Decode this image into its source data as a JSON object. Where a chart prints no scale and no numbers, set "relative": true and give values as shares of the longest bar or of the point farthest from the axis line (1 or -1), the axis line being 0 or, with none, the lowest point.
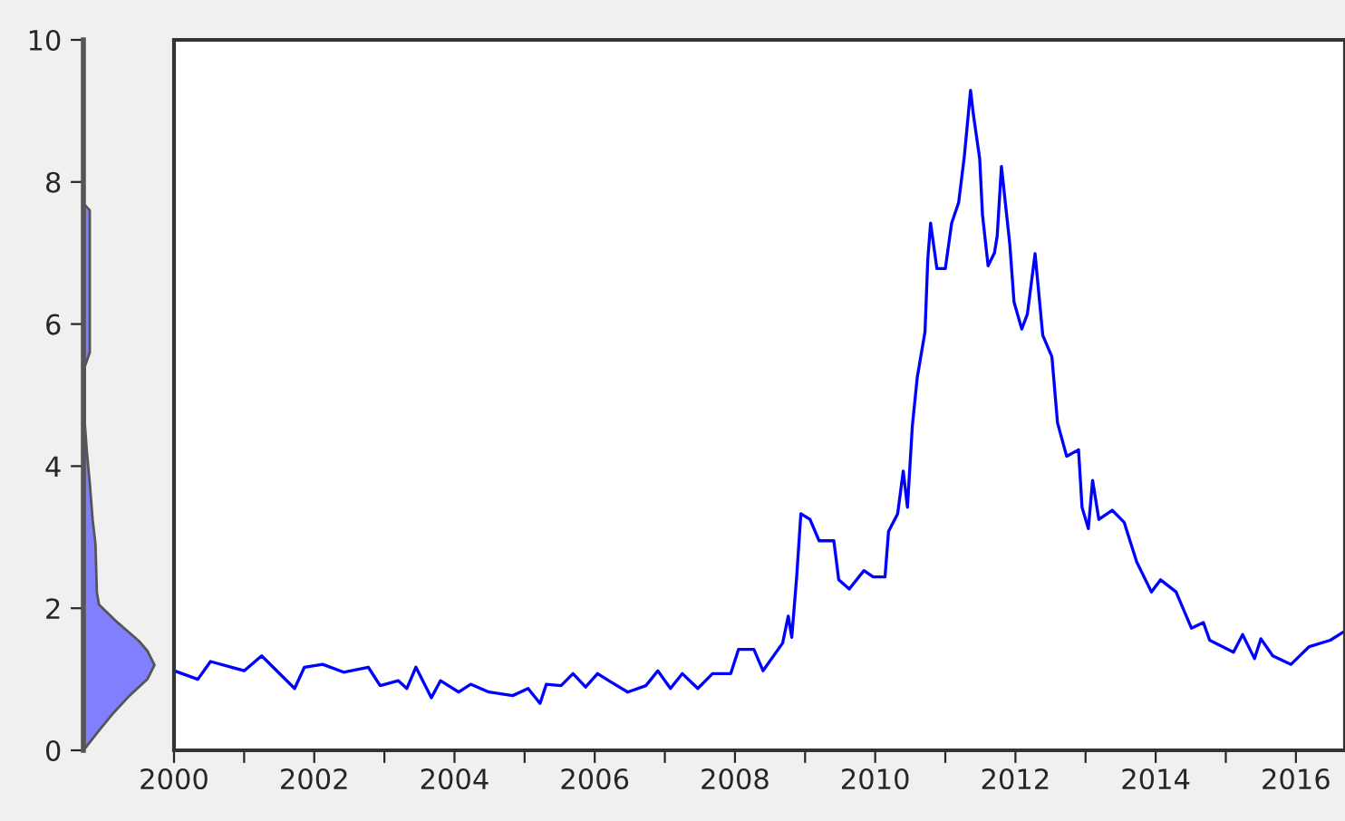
{
  "chart_data": [
    {
      "type": "area",
      "orientation": "horizontal",
      "relative": true,
      "color": "#8080ff",
      "x": [
        0,
        0.05,
        0.28,
        0.5,
        0.77,
        1.0,
        1.2,
        1.4,
        1.54,
        1.8,
        2.05,
        2.22,
        2.9,
        3.25,
        3.76,
        4.19,
        4.6,
        5.4,
        5.6,
        7.6,
        7.7,
        10
      ],
      "values": [
        0,
        0.04,
        0.22,
        0.4,
        0.65,
        0.9,
        1,
        0.9,
        0.78,
        0.48,
        0.22,
        0.19,
        0.17,
        0.13,
        0.09,
        0.05,
        0.02,
        0.02,
        0.09,
        0.09,
        0,
        0
      ],
      "ylim": [
        0,
        10
      ],
      "yticks": [
        0,
        2,
        4,
        6,
        8,
        10
      ],
      "tick_labels": "y",
      "grid": false
    },
    {
      "type": "line",
      "color": "#0000ff",
      "grid": false,
      "tick_labels": "x",
      "ylim": [
        0,
        10
      ],
      "xlim": [
        2000,
        2016.7
      ],
      "xticks": [
        2000,
        {
          "value": 2001,
          "label": null
        },
        2002,
        {
          "value": 2003,
          "label": null
        },
        2004,
        {
          "value": 2005,
          "label": null
        },
        2006,
        {
          "value": 2007,
          "label": null
        },
        2008,
        {
          "value": 2009,
          "label": null
        },
        2010,
        {
          "value": 2011,
          "label": null
        },
        2012,
        {
          "value": 2013,
          "label": null
        },
        2014,
        {
          "value": 2015,
          "label": null
        },
        2016
      ],
      "x": [
        2000.0,
        2000.34,
        2000.52,
        2001.0,
        2001.25,
        2001.72,
        2001.86,
        2002.12,
        2002.42,
        2002.77,
        2002.94,
        2003.2,
        2003.32,
        2003.45,
        2003.67,
        2003.8,
        2004.06,
        2004.23,
        2004.49,
        2004.83,
        2005.05,
        2005.22,
        2005.31,
        2005.52,
        2005.69,
        2005.87,
        2006.04,
        2006.2,
        2006.47,
        2006.73,
        2006.9,
        2007.08,
        2007.25,
        2007.47,
        2007.68,
        2007.94,
        2008.05,
        2008.27,
        2008.4,
        2008.68,
        2008.76,
        2008.81,
        2008.88,
        2008.94,
        2009.07,
        2009.2,
        2009.41,
        2009.48,
        2009.63,
        2009.84,
        2009.97,
        2010.14,
        2010.19,
        2010.32,
        2010.4,
        2010.46,
        2010.53,
        2010.6,
        2010.71,
        2010.75,
        2010.79,
        2010.88,
        2011.0,
        2011.09,
        2011.19,
        2011.27,
        2011.36,
        2011.4,
        2011.49,
        2011.53,
        2011.61,
        2011.7,
        2011.74,
        2011.8,
        2011.92,
        2011.98,
        2012.09,
        2012.17,
        2012.28,
        2012.39,
        2012.52,
        2012.6,
        2012.73,
        2012.9,
        2012.95,
        2013.04,
        2013.1,
        2013.19,
        2013.38,
        2013.55,
        2013.73,
        2013.94,
        2014.07,
        2014.29,
        2014.51,
        2014.68,
        2014.77,
        2015.11,
        2015.24,
        2015.41,
        2015.5,
        2015.67,
        2015.93,
        2016.19,
        2016.49,
        2016.7
      ],
      "values": [
        1.12,
        1.0,
        1.25,
        1.12,
        1.33,
        0.87,
        1.17,
        1.21,
        1.1,
        1.17,
        0.91,
        0.98,
        0.87,
        1.17,
        0.74,
        0.98,
        0.82,
        0.93,
        0.82,
        0.77,
        0.87,
        0.66,
        0.93,
        0.91,
        1.08,
        0.89,
        1.08,
        0.98,
        0.82,
        0.91,
        1.12,
        0.87,
        1.08,
        0.87,
        1.08,
        1.08,
        1.42,
        1.42,
        1.12,
        1.51,
        1.89,
        1.59,
        2.44,
        3.33,
        3.25,
        2.95,
        2.95,
        2.4,
        2.27,
        2.53,
        2.44,
        2.44,
        3.08,
        3.33,
        3.93,
        3.42,
        4.57,
        5.25,
        5.89,
        6.91,
        7.42,
        6.78,
        6.78,
        7.42,
        7.71,
        8.35,
        9.29,
        8.95,
        8.33,
        7.54,
        6.82,
        7.0,
        7.24,
        8.22,
        7.12,
        6.31,
        5.93,
        6.14,
        6.99,
        5.84,
        5.54,
        4.61,
        4.14,
        4.23,
        3.42,
        3.12,
        3.8,
        3.25,
        3.38,
        3.21,
        2.65,
        2.23,
        2.4,
        2.23,
        1.72,
        1.8,
        1.55,
        1.38,
        1.63,
        1.29,
        1.57,
        1.33,
        1.21,
        1.46,
        1.55,
        1.68
      ]
    }
  ]
}
